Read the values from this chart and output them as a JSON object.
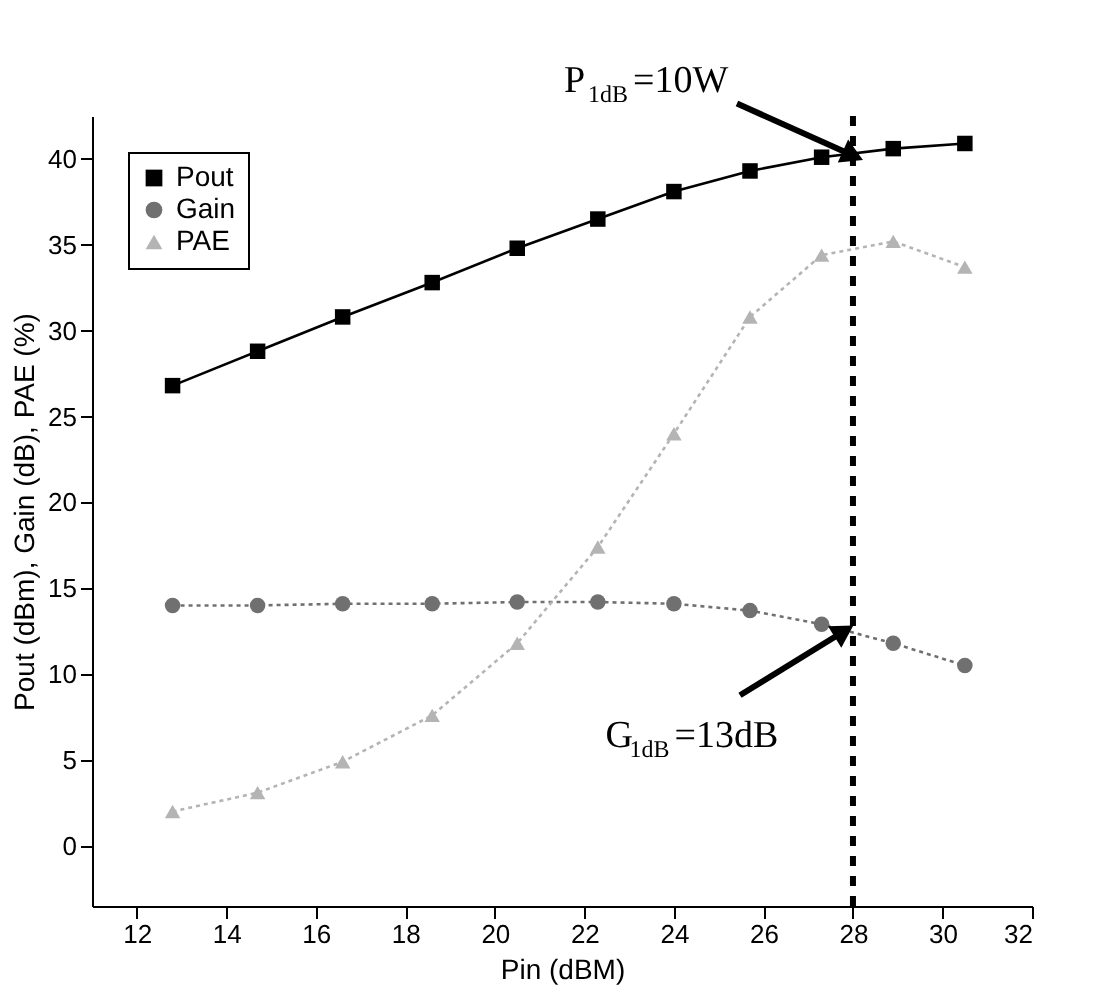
{
  "chart_data": {
    "type": "line",
    "xlabel": "Pin (dBM)",
    "ylabel": "Pout (dBm), Gain (dB), PAE (%)",
    "x": [
      12.8,
      14.7,
      16.6,
      18.6,
      20.5,
      22.3,
      24.0,
      25.7,
      27.3,
      28.9,
      30.5
    ],
    "series": [
      {
        "name": "Pout",
        "color": "#000000",
        "marker": "square",
        "line_style": "solid",
        "values": [
          26.8,
          28.8,
          30.8,
          32.8,
          34.8,
          36.5,
          38.1,
          39.3,
          40.1,
          40.6,
          40.9
        ]
      },
      {
        "name": "Gain",
        "color": "#707070",
        "marker": "circle",
        "line_style": "dotted",
        "values": [
          14.0,
          14.0,
          14.1,
          14.1,
          14.2,
          14.2,
          14.1,
          13.7,
          12.9,
          11.8,
          10.5
        ]
      },
      {
        "name": "PAE",
        "color": "#b4b4b4",
        "marker": "triangle",
        "line_style": "dotted",
        "values": [
          2.0,
          3.1,
          4.9,
          7.6,
          11.8,
          17.4,
          24.0,
          30.8,
          34.4,
          35.2,
          33.7
        ]
      }
    ],
    "xlim": [
      11,
      32
    ],
    "xticks": [
      12,
      14,
      16,
      18,
      20,
      22,
      24,
      26,
      28,
      30,
      32
    ],
    "ylim": [
      -3.5,
      42.5
    ],
    "yticks": [
      0,
      5,
      10,
      15,
      20,
      25,
      30,
      35,
      40
    ],
    "ref_lines": [
      {
        "axis": "x",
        "value": 28,
        "color": "#000000",
        "line_style": "dashed"
      }
    ],
    "annotations": [
      {
        "text": "P$_{1dB}$=10W",
        "x": 28,
        "y": 40.2
      },
      {
        "text": "G$_{1dB}$=13dB",
        "x": 27.8,
        "y": 12.5
      }
    ],
    "legend": "top left",
    "grid": false
  }
}
